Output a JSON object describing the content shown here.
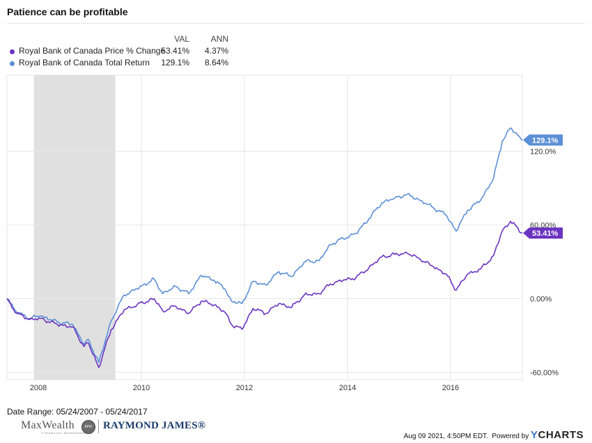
{
  "title": "Patience can be profitable",
  "legend": {
    "header_val": "VAL",
    "header_ann": "ANN",
    "rows": [
      {
        "name": "Royal Bank of Canada Price % Change",
        "val": "53.41%",
        "ann": "4.37%",
        "color": "#6a33c2"
      },
      {
        "name": "Royal Bank of Canada Total Return",
        "val": "129.1%",
        "ann": "8.64%",
        "color": "#5b8fd6"
      }
    ]
  },
  "chart_data": {
    "type": "line",
    "title": "Patience can be profitable",
    "xlabel": "",
    "ylabel": "",
    "x_ticks": [
      "2008",
      "2010",
      "2012",
      "2014",
      "2016"
    ],
    "y_ticks": [
      "-60.00%",
      "0.00%",
      "60.00%",
      "120.0%"
    ],
    "x_range": [
      "2007-05-24",
      "2017-05-24"
    ],
    "y_range": [
      -66,
      182
    ],
    "grid": true,
    "recession_band": {
      "start": "2007-12-01",
      "end": "2009-06-30",
      "color": "#e0e0e0"
    },
    "series": [
      {
        "name": "Royal Bank of Canada Total Return",
        "color": "#5b8fd6",
        "end_label": "129.1%",
        "x": [
          "2007-05-24",
          "2007-08-01",
          "2007-11-01",
          "2008-01-15",
          "2008-05-15",
          "2008-09-01",
          "2008-11-20",
          "2008-12-20",
          "2009-03-05",
          "2009-06-01",
          "2009-09-01",
          "2009-12-01",
          "2010-04-01",
          "2010-06-01",
          "2010-09-01",
          "2010-12-01",
          "2011-03-01",
          "2011-06-01",
          "2011-08-15",
          "2011-10-01",
          "2011-12-15",
          "2012-03-01",
          "2012-06-01",
          "2012-09-01",
          "2012-12-01",
          "2013-03-01",
          "2013-06-15",
          "2013-09-01",
          "2013-12-01",
          "2014-03-01",
          "2014-06-01",
          "2014-09-01",
          "2014-12-01",
          "2015-03-01",
          "2015-06-01",
          "2015-09-01",
          "2015-12-01",
          "2016-02-10",
          "2016-05-01",
          "2016-08-01",
          "2016-11-01",
          "2017-01-01",
          "2017-03-01",
          "2017-05-24"
        ],
        "y": [
          0,
          -11,
          -16,
          -14,
          -19,
          -21,
          -37,
          -33,
          -52,
          -18,
          3,
          8,
          16,
          4,
          10,
          4,
          19,
          15,
          8,
          -2,
          -4,
          14,
          11,
          22,
          18,
          30,
          31,
          44,
          49,
          53,
          65,
          78,
          82,
          85,
          80,
          74,
          68,
          55,
          72,
          80,
          98,
          128,
          139,
          129.1
        ]
      },
      {
        "name": "Royal Bank of Canada Price % Change",
        "color": "#6a33c2",
        "end_label": "53.41%",
        "x": [
          "2007-05-24",
          "2007-08-01",
          "2007-11-01",
          "2008-01-15",
          "2008-05-15",
          "2008-09-01",
          "2008-11-20",
          "2008-12-20",
          "2009-03-05",
          "2009-06-01",
          "2009-09-01",
          "2009-12-01",
          "2010-04-01",
          "2010-06-01",
          "2010-09-01",
          "2010-12-01",
          "2011-03-01",
          "2011-06-01",
          "2011-08-15",
          "2011-10-01",
          "2011-12-15",
          "2012-03-01",
          "2012-06-01",
          "2012-09-01",
          "2012-12-01",
          "2013-03-01",
          "2013-06-15",
          "2013-09-01",
          "2013-12-01",
          "2014-03-01",
          "2014-06-01",
          "2014-09-01",
          "2014-12-01",
          "2015-03-01",
          "2015-06-01",
          "2015-09-01",
          "2015-12-01",
          "2016-02-10",
          "2016-05-01",
          "2016-08-01",
          "2016-11-01",
          "2017-01-01",
          "2017-03-01",
          "2017-05-24"
        ],
        "y": [
          0,
          -12,
          -17,
          -16,
          -21,
          -23,
          -39,
          -36,
          -56,
          -25,
          -9,
          -5,
          0,
          -10,
          -6,
          -12,
          -2,
          -5,
          -11,
          -21,
          -25,
          -8,
          -12,
          -4,
          -7,
          3,
          4,
          12,
          15,
          17,
          25,
          34,
          36,
          37,
          32,
          26,
          20,
          7,
          20,
          24,
          35,
          55,
          63,
          53.41
        ]
      }
    ]
  },
  "footer": {
    "date_range": "Date Range: 05/24/2007 - 05/24/2017",
    "timestamp": "Aug 09 2021, 4:50PM EDT.",
    "powered_by": "Powered by",
    "ycharts_y": "Y",
    "ycharts_rest": "CHARTS"
  },
  "branding": {
    "maxwealth": "MaxWealth",
    "maxwealth_sub": "FINANCIAL MANAGEMENT",
    "maxwealth_seal": "MW",
    "raymond_james": "RAYMOND JAMES®"
  }
}
